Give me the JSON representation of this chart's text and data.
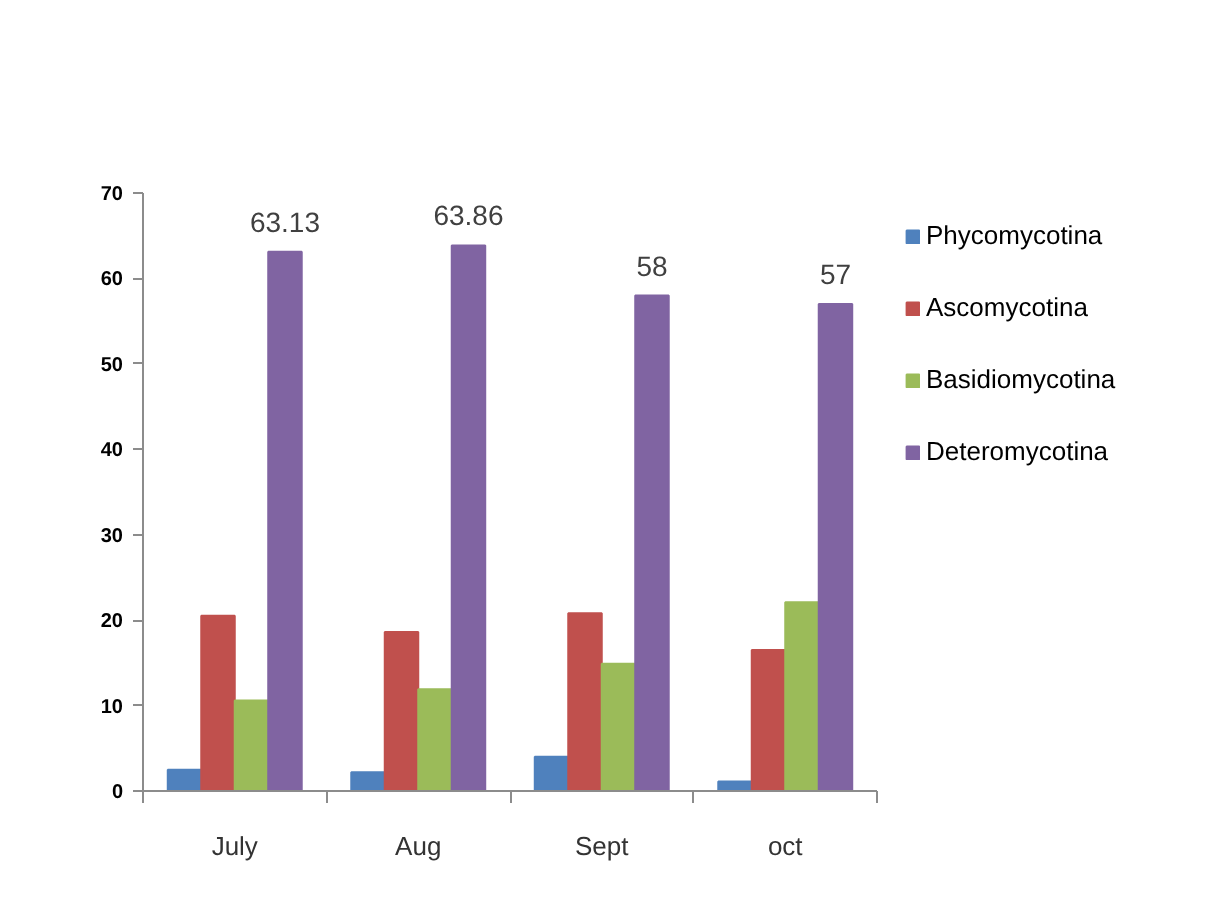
{
  "chart_data": {
    "type": "bar",
    "categories": [
      "July",
      "Aug",
      "Sept",
      "oct"
    ],
    "series": [
      {
        "name": "Phycomycotina",
        "color": "#4f81bd",
        "values": [
          2.5,
          2.2,
          4.0,
          1.1
        ]
      },
      {
        "name": "Ascomycotina",
        "color": "#c0504d",
        "values": [
          20.5,
          18.6,
          20.8,
          16.5
        ]
      },
      {
        "name": "Basidiomycotina",
        "color": "#9bbb59",
        "values": [
          10.6,
          11.9,
          14.9,
          22.1
        ]
      },
      {
        "name": "Deteromycotina",
        "color": "#8064a2",
        "values": [
          63.13,
          63.86,
          58,
          57
        ],
        "value_labels": [
          "63.13",
          "63.86",
          "58",
          "57"
        ]
      }
    ],
    "ylim": [
      0,
      70
    ],
    "yticks": [
      0,
      10,
      20,
      30,
      40,
      50,
      60,
      70
    ],
    "legend": "top right"
  }
}
